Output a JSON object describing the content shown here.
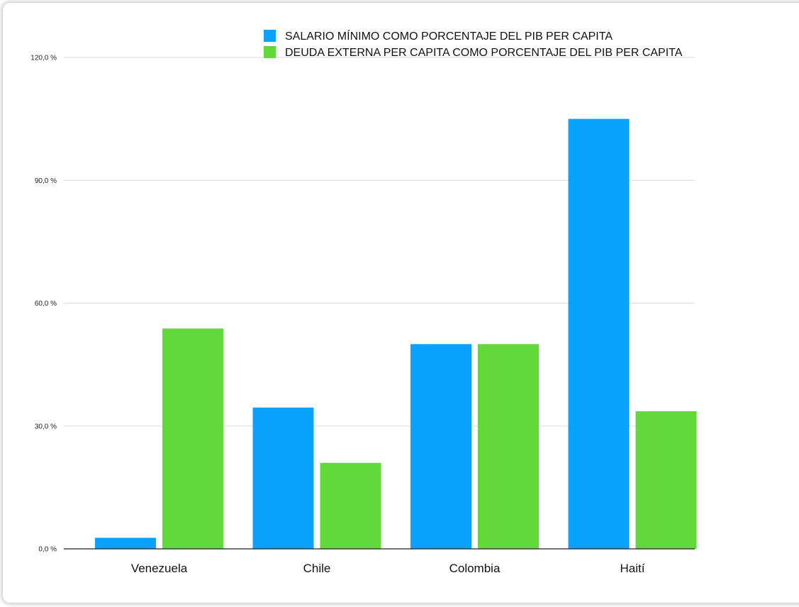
{
  "chart_data": {
    "type": "bar",
    "categories": [
      "Venezuela",
      "Chile",
      "Colombia",
      "Haití"
    ],
    "series": [
      {
        "name": "SALARIO MÍNIMO COMO PORCENTAJE DEL PIB PER CAPITA",
        "color": "#0aa2ff",
        "values": [
          2.7,
          34.5,
          50.0,
          105.0
        ]
      },
      {
        "name": "DEUDA EXTERNA PER CAPITA COMO PORCENTAJE DEL PIB PER CAPITA",
        "color": "#62d83a",
        "values": [
          53.8,
          21.0,
          50.0,
          33.6
        ]
      }
    ],
    "yticks": [
      0,
      30,
      60,
      90,
      120
    ],
    "ytick_labels": [
      "0,0 %",
      "30,0 %",
      "60,0 %",
      "90,0 %",
      "120,0 %"
    ],
    "ylim": [
      0,
      120
    ],
    "grid": true,
    "legend_position": "top-right",
    "title": "",
    "xlabel": "",
    "ylabel": ""
  }
}
